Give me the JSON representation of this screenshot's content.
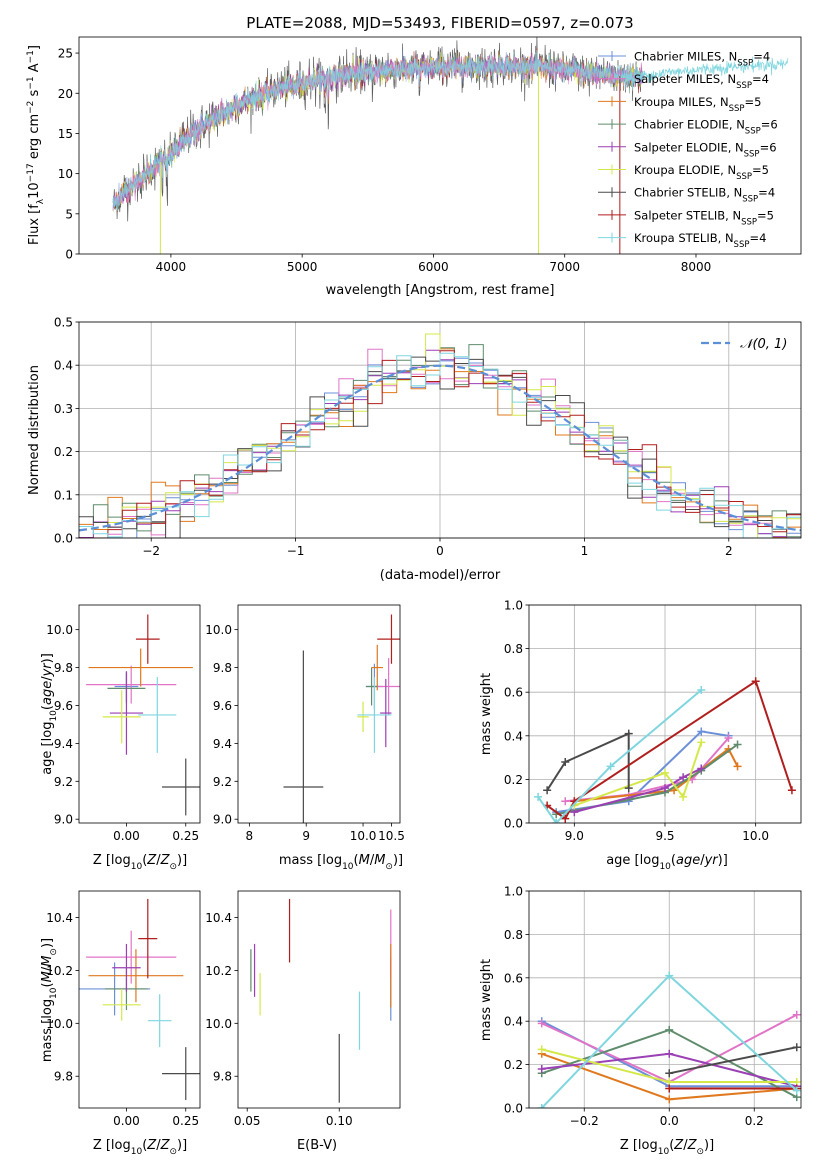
{
  "colors": {
    "Chabrier MILES": "#6b8fd8",
    "Salpeter MILES": "#e274c8",
    "Kroupa MILES": "#e0781e",
    "Chabrier ELODIE": "#5f8c6c",
    "Salpeter ELODIE": "#9b3fb5",
    "Kroupa ELODIE": "#d4e84a",
    "Chabrier STELIB": "#4a4a4a",
    "Salpeter STELIB": "#b01e1e",
    "Kroupa STELIB": "#7fd6df",
    "normal": "#5b8fd8"
  },
  "chart_data": [
    {
      "id": "spectrum",
      "type": "line",
      "title": "PLATE=2088, MJD=53493, FIBERID=0597, z=0.073",
      "xlabel": "wavelength [Angstrom, rest frame]",
      "ylabel_main": "Flux [f",
      "ylabel_sub": "λ",
      "ylabel_mid": "10",
      "ylabel_sup1": "−17",
      "ylabel_rest": " erg cm",
      "ylabel_sup2": "−2",
      "ylabel_rest2": " s",
      "ylabel_sup3": "−1",
      "ylabel_rest3": " A",
      "ylabel_sup4": "−1",
      "ylabel_end": "]",
      "xlim": [
        3300,
        8800
      ],
      "ylim": [
        0,
        27
      ],
      "xticks": [
        4000,
        5000,
        6000,
        7000,
        8000
      ],
      "yticks": [
        0,
        5,
        10,
        15,
        20,
        25
      ],
      "continuum": [
        [
          3550,
          6
        ],
        [
          3700,
          8.5
        ],
        [
          3850,
          10.5
        ],
        [
          4000,
          12.5
        ],
        [
          4200,
          15.5
        ],
        [
          4500,
          18.5
        ],
        [
          4800,
          20.5
        ],
        [
          5200,
          22
        ],
        [
          5600,
          22.8
        ],
        [
          6000,
          23.2
        ],
        [
          6400,
          23.4
        ],
        [
          6800,
          23.3
        ],
        [
          7200,
          22.5
        ],
        [
          7500,
          22
        ],
        [
          7800,
          22.6
        ],
        [
          8200,
          23.2
        ],
        [
          8800,
          23.8
        ]
      ],
      "legend_labels": [
        {
          "name": "Chabrier MILES",
          "nssp": "4"
        },
        {
          "name": "Salpeter MILES",
          "nssp": "4"
        },
        {
          "name": "Kroupa MILES",
          "nssp": "5"
        },
        {
          "name": "Chabrier ELODIE",
          "nssp": "6"
        },
        {
          "name": "Salpeter ELODIE",
          "nssp": "6"
        },
        {
          "name": "Kroupa ELODIE",
          "nssp": "5"
        },
        {
          "name": "Chabrier STELIB",
          "nssp": "4"
        },
        {
          "name": "Salpeter STELIB",
          "nssp": "5"
        },
        {
          "name": "Kroupa STELIB",
          "nssp": "4"
        }
      ],
      "nssp_prefix": "N",
      "nssp_sub": "SSP",
      "legend_placement": "upper-right"
    },
    {
      "id": "residuals",
      "type": "histogram",
      "xlabel": "(data-model)/error",
      "ylabel": "Normed distribution",
      "xlim": [
        -2.5,
        2.5
      ],
      "ylim": [
        0,
        0.5
      ],
      "xticks": [
        -2,
        -1,
        0,
        1,
        2
      ],
      "yticks": [
        0.0,
        0.1,
        0.2,
        0.3,
        0.4,
        0.5
      ],
      "grid": true,
      "bin_width": 0.1,
      "legend": "𝒩(0, 1)",
      "legend_placement": "upper-right"
    },
    {
      "id": "age_vs_Z",
      "type": "errorbar",
      "xlabel": "Z [log10(Z/Z⊙)]",
      "ylabel": "age  [log10(age/yr)]",
      "xlim": [
        -0.2,
        0.31
      ],
      "ylim": [
        8.98,
        10.13
      ],
      "xticks": [
        0.0,
        0.25
      ],
      "yticks": [
        9.0,
        9.2,
        9.4,
        9.6,
        9.8,
        10.0
      ],
      "points": [
        {
          "model": "Chabrier MILES",
          "x": 0.0,
          "xerr": 0.05,
          "y": 9.7,
          "yerr": 0.08
        },
        {
          "model": "Salpeter MILES",
          "x": 0.02,
          "xerr": 0.19,
          "y": 9.71,
          "yerr": 0.1
        },
        {
          "model": "Kroupa MILES",
          "x": 0.06,
          "xerr": 0.22,
          "y": 9.8,
          "yerr": 0.1
        },
        {
          "model": "Chabrier ELODIE",
          "x": 0.0,
          "xerr": 0.08,
          "y": 9.69,
          "yerr": 0.08
        },
        {
          "model": "Salpeter ELODIE",
          "x": 0.0,
          "xerr": 0.07,
          "y": 9.56,
          "yerr": 0.22
        },
        {
          "model": "Kroupa ELODIE",
          "x": -0.02,
          "xerr": 0.08,
          "y": 9.54,
          "yerr": 0.14
        },
        {
          "model": "Chabrier STELIB",
          "x": 0.25,
          "xerr": 0.1,
          "y": 9.17,
          "yerr": 0.15
        },
        {
          "model": "Salpeter STELIB",
          "x": 0.09,
          "xerr": 0.05,
          "y": 9.95,
          "yerr": 0.13
        },
        {
          "model": "Kroupa STELIB",
          "x": 0.13,
          "xerr": 0.08,
          "y": 9.55,
          "yerr": 0.2
        }
      ]
    },
    {
      "id": "age_vs_mass",
      "type": "errorbar",
      "xlabel": "mass [log10(M/M⊙)]",
      "xlim": [
        7.8,
        10.65
      ],
      "ylim": [
        8.98,
        10.13
      ],
      "xticks": [
        8.0,
        9.0,
        10.0,
        10.5
      ],
      "xticklabels": [
        "8",
        "9",
        "10.0",
        "10.5"
      ],
      "yticks": [
        9.0,
        9.2,
        9.4,
        9.6,
        9.8,
        10.0
      ],
      "points": [
        {
          "model": "Chabrier MILES",
          "x": 10.2,
          "xerr": 0.15,
          "y": 9.7,
          "yerr": 0.12
        },
        {
          "model": "Salpeter MILES",
          "x": 10.45,
          "xerr": 0.3,
          "y": 9.7,
          "yerr": 0.15
        },
        {
          "model": "Kroupa MILES",
          "x": 10.25,
          "xerr": 0.1,
          "y": 9.8,
          "yerr": 0.12
        },
        {
          "model": "Chabrier ELODIE",
          "x": 10.15,
          "xerr": 0.1,
          "y": 9.7,
          "yerr": 0.1
        },
        {
          "model": "Salpeter ELODIE",
          "x": 10.4,
          "xerr": 0.1,
          "y": 9.56,
          "yerr": 0.18
        },
        {
          "model": "Kroupa ELODIE",
          "x": 10.0,
          "xerr": 0.1,
          "y": 9.54,
          "yerr": 0.08
        },
        {
          "model": "Chabrier STELIB",
          "x": 8.95,
          "xerr": 0.35,
          "y": 9.17,
          "yerr": 0.72
        },
        {
          "model": "Salpeter STELIB",
          "x": 10.5,
          "xerr": 0.25,
          "y": 9.95,
          "yerr": 0.13
        },
        {
          "model": "Kroupa STELIB",
          "x": 10.2,
          "xerr": 0.3,
          "y": 9.55,
          "yerr": 0.2
        }
      ]
    },
    {
      "id": "weight_vs_age",
      "type": "line",
      "xlabel": "age  [log10(age/yr)]",
      "ylabel": "mass weight",
      "xlim": [
        8.75,
        10.25
      ],
      "ylim": [
        0,
        1.0
      ],
      "xticks": [
        9.0,
        9.5,
        10.0
      ],
      "yticks": [
        0.0,
        0.2,
        0.4,
        0.6,
        0.8,
        1.0
      ],
      "grid": true,
      "series": [
        {
          "model": "Chabrier MILES",
          "points": [
            [
              8.9,
              0.05
            ],
            [
              9.3,
              0.1
            ],
            [
              9.7,
              0.42
            ],
            [
              9.85,
              0.4
            ]
          ]
        },
        {
          "model": "Salpeter MILES",
          "points": [
            [
              8.95,
              0.1
            ],
            [
              9.3,
              0.13
            ],
            [
              9.65,
              0.2
            ],
            [
              9.85,
              0.39
            ]
          ]
        },
        {
          "model": "Kroupa MILES",
          "points": [
            [
              9.0,
              0.1
            ],
            [
              9.55,
              0.15
            ],
            [
              9.85,
              0.34
            ],
            [
              9.9,
              0.26
            ]
          ]
        },
        {
          "model": "Chabrier ELODIE",
          "points": [
            [
              8.9,
              0.04
            ],
            [
              9.5,
              0.14
            ],
            [
              9.7,
              0.24
            ],
            [
              9.9,
              0.36
            ]
          ]
        },
        {
          "model": "Salpeter ELODIE",
          "points": [
            [
              9.0,
              0.05
            ],
            [
              9.5,
              0.16
            ],
            [
              9.6,
              0.21
            ],
            [
              9.7,
              0.25
            ]
          ]
        },
        {
          "model": "Kroupa ELODIE",
          "points": [
            [
              9.0,
              0.08
            ],
            [
              9.5,
              0.23
            ],
            [
              9.6,
              0.12
            ],
            [
              9.7,
              0.37
            ]
          ]
        },
        {
          "model": "Chabrier STELIB",
          "points": [
            [
              8.85,
              0.15
            ],
            [
              8.95,
              0.28
            ],
            [
              9.3,
              0.41
            ],
            [
              9.3,
              0.16
            ]
          ]
        },
        {
          "model": "Salpeter STELIB",
          "points": [
            [
              8.85,
              0.08
            ],
            [
              8.95,
              0.02
            ],
            [
              9.0,
              0.1
            ],
            [
              10.0,
              0.65
            ],
            [
              10.2,
              0.15
            ]
          ]
        },
        {
          "model": "Kroupa STELIB",
          "points": [
            [
              8.8,
              0.12
            ],
            [
              8.9,
              0.0
            ],
            [
              9.2,
              0.26
            ],
            [
              9.7,
              0.61
            ]
          ]
        }
      ]
    },
    {
      "id": "mass_vs_Z",
      "type": "errorbar",
      "xlabel": "Z [log10(Z/Z⊙)]",
      "ylabel": "mass [log10(M/M⊙)]",
      "xlim": [
        -0.2,
        0.31
      ],
      "ylim": [
        9.68,
        10.5
      ],
      "xticks": [
        0.0,
        0.25
      ],
      "yticks": [
        9.8,
        10.0,
        10.2,
        10.4
      ],
      "points": [
        {
          "model": "Chabrier MILES",
          "x": -0.05,
          "xerr": 0.15,
          "y": 10.13,
          "yerr": 0.1
        },
        {
          "model": "Salpeter MILES",
          "x": 0.02,
          "xerr": 0.19,
          "y": 10.25,
          "yerr": 0.1
        },
        {
          "model": "Kroupa MILES",
          "x": 0.04,
          "xerr": 0.2,
          "y": 10.18,
          "yerr": 0.1
        },
        {
          "model": "Chabrier ELODIE",
          "x": 0.0,
          "xerr": 0.09,
          "y": 10.13,
          "yerr": 0.08
        },
        {
          "model": "Salpeter ELODIE",
          "x": 0.0,
          "xerr": 0.06,
          "y": 10.21,
          "yerr": 0.09
        },
        {
          "model": "Kroupa ELODIE",
          "x": -0.02,
          "xerr": 0.08,
          "y": 10.07,
          "yerr": 0.06
        },
        {
          "model": "Chabrier STELIB",
          "x": 0.25,
          "xerr": 0.1,
          "y": 9.81,
          "yerr": 0.1
        },
        {
          "model": "Salpeter STELIB",
          "x": 0.09,
          "xerr": 0.04,
          "y": 10.32,
          "yerr": 0.15
        },
        {
          "model": "Kroupa STELIB",
          "x": 0.14,
          "xerr": 0.05,
          "y": 10.01,
          "yerr": 0.1
        }
      ]
    },
    {
      "id": "mass_vs_ebv",
      "type": "errorbar",
      "xlabel": "E(B-V)",
      "xlim": [
        0.045,
        0.133
      ],
      "ylim": [
        9.68,
        10.5
      ],
      "xticks": [
        0.05,
        0.1
      ],
      "yticks": [
        9.8,
        10.0,
        10.2,
        10.4
      ],
      "points": [
        {
          "model": "Chabrier MILES",
          "x": 0.128,
          "xerr": 0,
          "y": 10.13,
          "yerr": 0.12
        },
        {
          "model": "Salpeter MILES",
          "x": 0.128,
          "xerr": 0,
          "y": 10.3,
          "yerr": 0.13
        },
        {
          "model": "Kroupa MILES",
          "x": 0.128,
          "xerr": 0,
          "y": 10.18,
          "yerr": 0.12
        },
        {
          "model": "Chabrier ELODIE",
          "x": 0.052,
          "xerr": 0,
          "y": 10.2,
          "yerr": 0.08
        },
        {
          "model": "Salpeter ELODIE",
          "x": 0.054,
          "xerr": 0,
          "y": 10.2,
          "yerr": 0.1
        },
        {
          "model": "Kroupa ELODIE",
          "x": 0.057,
          "xerr": 0,
          "y": 10.11,
          "yerr": 0.08
        },
        {
          "model": "Chabrier STELIB",
          "x": 0.1,
          "xerr": 0,
          "y": 9.83,
          "yerr": 0.13
        },
        {
          "model": "Salpeter STELIB",
          "x": 0.073,
          "xerr": 0,
          "y": 10.35,
          "yerr": 0.12
        },
        {
          "model": "Kroupa STELIB",
          "x": 0.111,
          "xerr": 0,
          "y": 10.01,
          "yerr": 0.11
        }
      ]
    },
    {
      "id": "weight_vs_Z",
      "type": "line",
      "xlabel": "Z [log10(Z/Z⊙)]",
      "ylabel": "mass weight",
      "xlim": [
        -0.33,
        0.31
      ],
      "ylim": [
        0,
        1.0
      ],
      "xticks": [
        -0.2,
        0.0,
        0.2
      ],
      "yticks": [
        0.0,
        0.2,
        0.4,
        0.6,
        0.8,
        1.0
      ],
      "grid": true,
      "series": [
        {
          "model": "Chabrier MILES",
          "points": [
            [
              -0.3,
              0.4
            ],
            [
              0.0,
              0.1
            ],
            [
              0.3,
              0.1
            ]
          ]
        },
        {
          "model": "Salpeter MILES",
          "points": [
            [
              -0.3,
              0.39
            ],
            [
              0.0,
              0.12
            ],
            [
              0.3,
              0.43
            ]
          ]
        },
        {
          "model": "Kroupa MILES",
          "points": [
            [
              -0.3,
              0.25
            ],
            [
              0.0,
              0.04
            ],
            [
              0.3,
              0.09
            ]
          ]
        },
        {
          "model": "Chabrier ELODIE",
          "points": [
            [
              -0.3,
              0.16
            ],
            [
              0.0,
              0.36
            ],
            [
              0.3,
              0.05
            ]
          ]
        },
        {
          "model": "Salpeter ELODIE",
          "points": [
            [
              -0.3,
              0.18
            ],
            [
              0.0,
              0.25
            ],
            [
              0.3,
              0.1
            ]
          ]
        },
        {
          "model": "Kroupa ELODIE",
          "points": [
            [
              -0.3,
              0.27
            ],
            [
              0.0,
              0.12
            ],
            [
              0.3,
              0.12
            ]
          ]
        },
        {
          "model": "Chabrier STELIB",
          "points": [
            [
              0.0,
              0.16
            ],
            [
              0.3,
              0.28
            ]
          ]
        },
        {
          "model": "Salpeter STELIB",
          "points": [
            [
              0.0,
              0.09
            ],
            [
              0.3,
              0.09
            ]
          ]
        },
        {
          "model": "Kroupa STELIB",
          "points": [
            [
              -0.3,
              0.0
            ],
            [
              0.0,
              0.61
            ],
            [
              0.3,
              0.08
            ]
          ]
        }
      ]
    }
  ]
}
